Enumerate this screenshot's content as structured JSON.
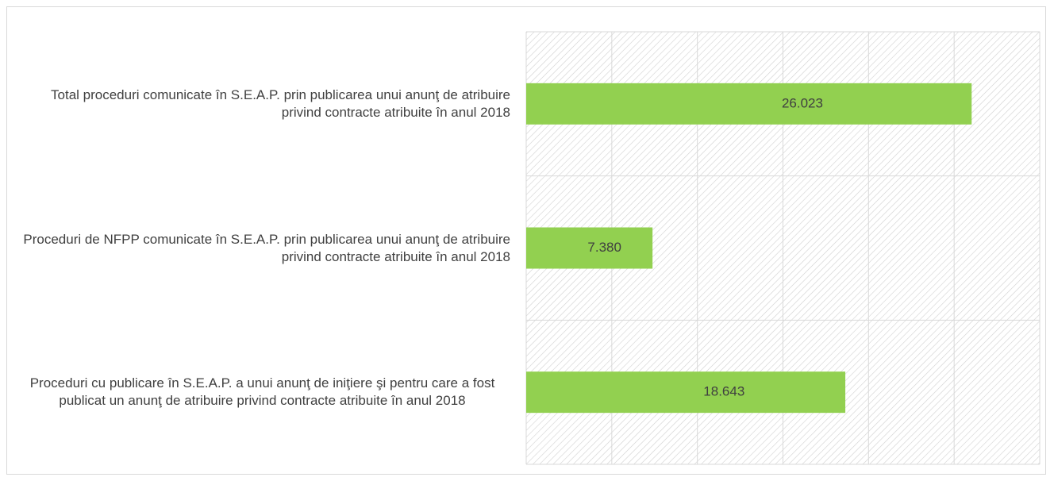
{
  "chart_data": {
    "type": "barh",
    "categories": [
      "Total proceduri comunicate în S.E.A.P.  prin publicarea unui anunţ de atribuire privind contracte atribuite în anul 2018",
      "Proceduri de NFPP comunicate în S.E.A.P. prin publicarea unui anunţ de atribuire privind contracte atribuite în anul 2018",
      "Proceduri cu publicare în S.E.A.P. a unui anunţ de iniţiere şi pentru care a fost publicat un anunţ de atribuire privind contracte atribuite în anul 2018"
    ],
    "values": [
      26023,
      7380,
      18643
    ],
    "value_labels": [
      "26.023",
      "7.380",
      "18.643"
    ],
    "color": "#92d050",
    "xlim": [
      0,
      30000
    ],
    "xticks": [
      0,
      5000,
      10000,
      15000,
      20000,
      25000,
      30000
    ],
    "grid": true
  }
}
